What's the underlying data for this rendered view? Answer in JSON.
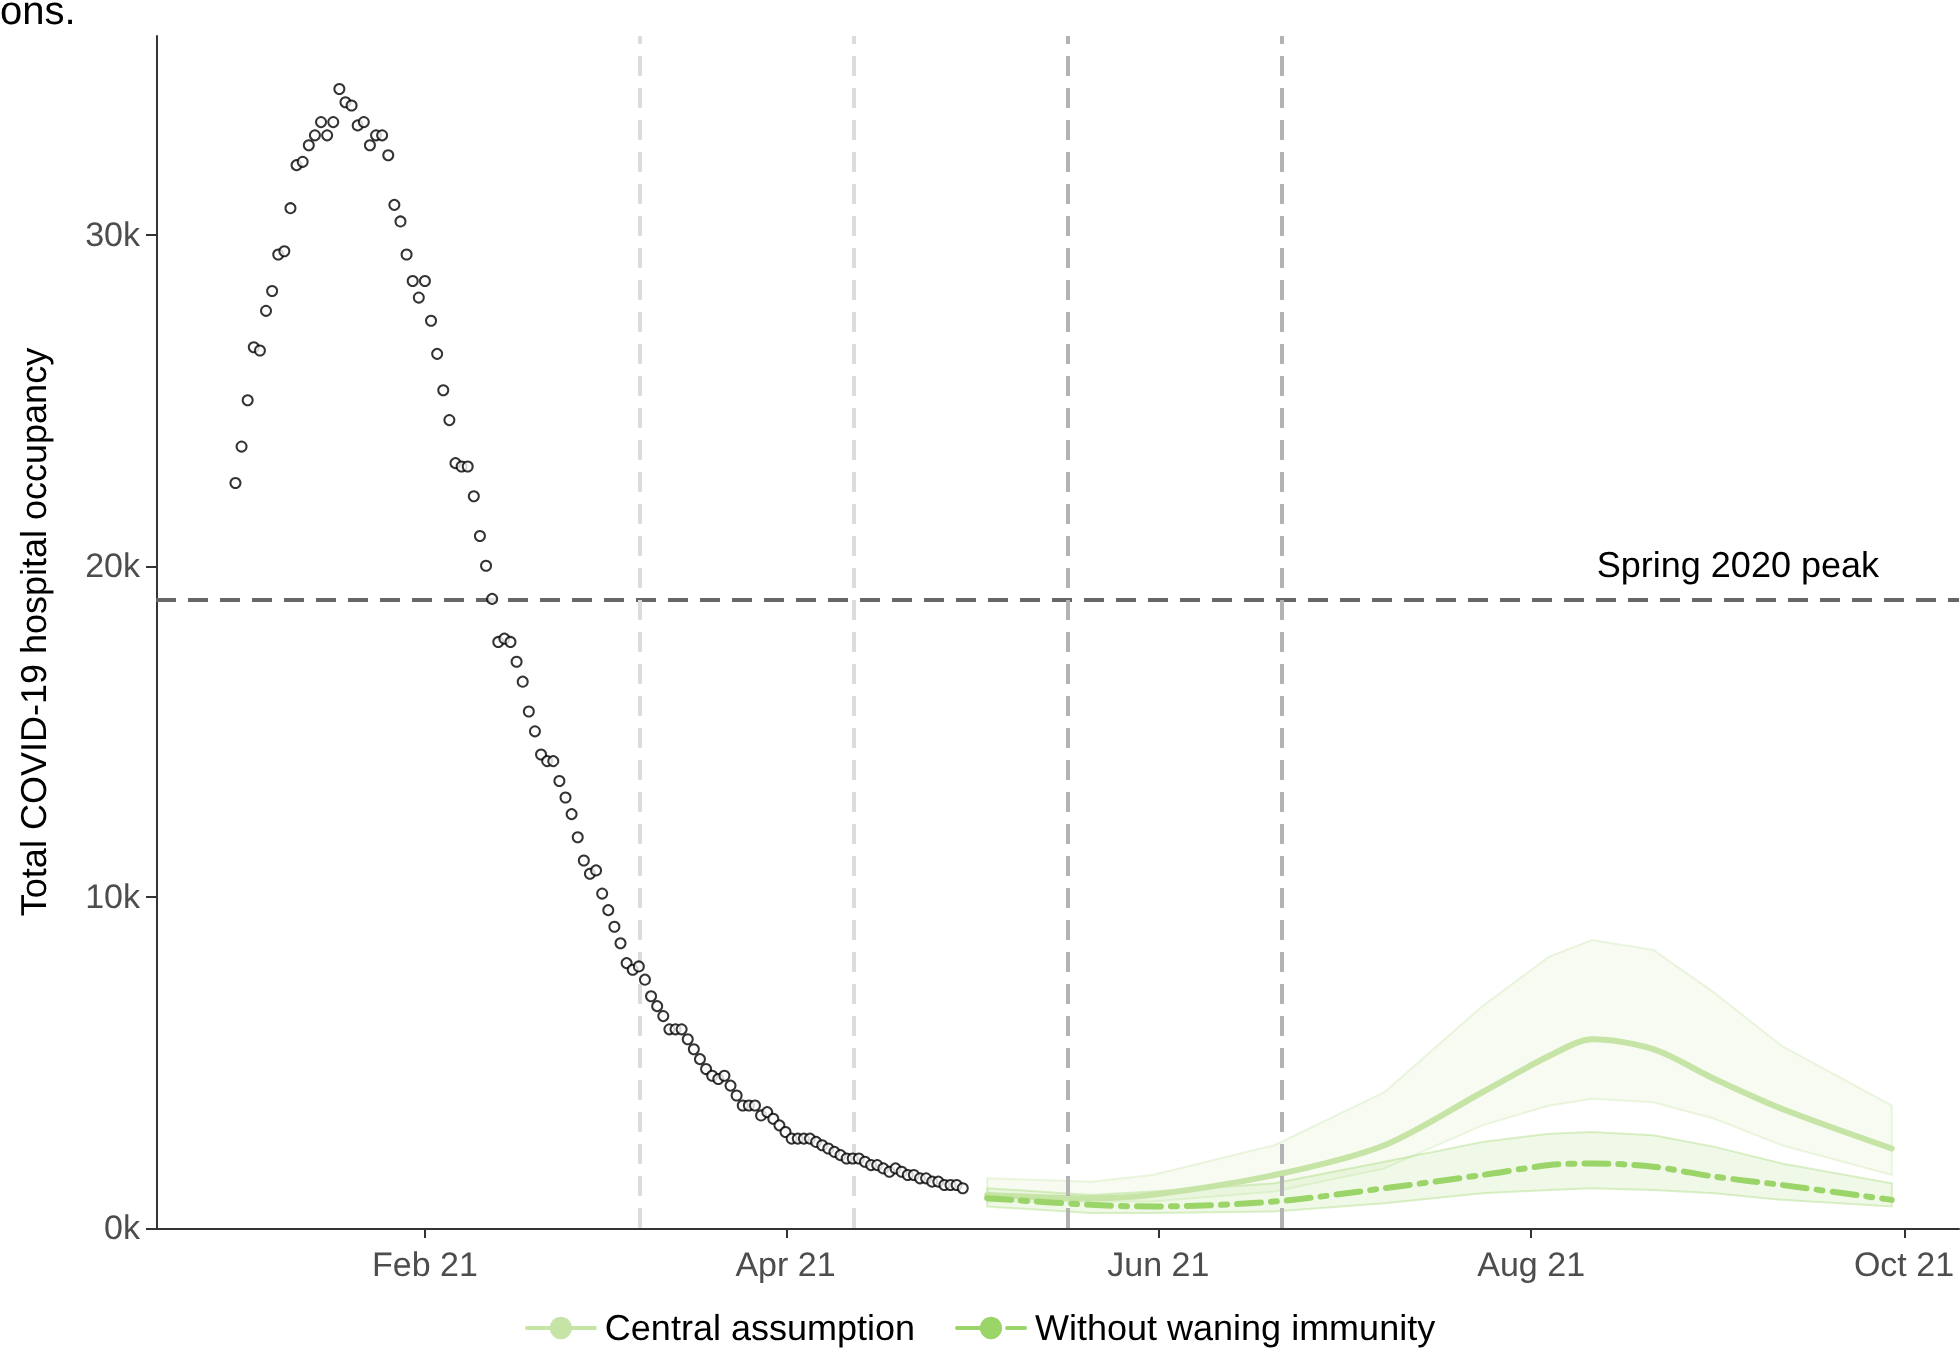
{
  "chart_data": {
    "type": "line",
    "ylabel": "Total COVID-19 hospital occupancy",
    "annotations": [
      "ons."
    ],
    "xlim": [
      "2020-12-19",
      "2021-10-10"
    ],
    "xticks": [
      {
        "value": "2021-02-01",
        "label": "Feb 21"
      },
      {
        "value": "2021-04-01",
        "label": "Apr 21"
      },
      {
        "value": "2021-06-01",
        "label": "Jun 21"
      },
      {
        "value": "2021-08-01",
        "label": "Aug 21"
      },
      {
        "value": "2021-10-01",
        "label": "Oct 21"
      }
    ],
    "ylim": [
      0,
      36000
    ],
    "yticks": [
      {
        "value": 0,
        "label": "0k"
      },
      {
        "value": 10000,
        "label": "10k"
      },
      {
        "value": 20000,
        "label": "20k"
      },
      {
        "value": 30000,
        "label": "30k"
      }
    ],
    "legend": "bottom",
    "ref_lines": [
      {
        "axis": "y",
        "value": 19000,
        "label": "Spring 2020 peak",
        "color": "#666666",
        "line_style": "dashed"
      },
      {
        "axis": "x",
        "value": "2021-03-08",
        "label": null,
        "color": "#dcdcdc",
        "line_style": "dashed"
      },
      {
        "axis": "x",
        "value": "2021-04-12",
        "label": null,
        "color": "#dcdcdc",
        "line_style": "dashed"
      },
      {
        "axis": "x",
        "value": "2021-05-17",
        "label": null,
        "color": "#b3b3b3",
        "line_style": "dashed"
      },
      {
        "axis": "x",
        "value": "2021-06-21",
        "label": null,
        "color": "#b3b3b3",
        "line_style": "dashed"
      }
    ],
    "series": [
      {
        "type": "scatter",
        "marker": "circle",
        "color": "#000000",
        "x": [
          "2021-01-01",
          "2021-01-02",
          "2021-01-03",
          "2021-01-04",
          "2021-01-05",
          "2021-01-06",
          "2021-01-07",
          "2021-01-08",
          "2021-01-09",
          "2021-01-10",
          "2021-01-11",
          "2021-01-12",
          "2021-01-13",
          "2021-01-14",
          "2021-01-15",
          "2021-01-16",
          "2021-01-17",
          "2021-01-18",
          "2021-01-19",
          "2021-01-20",
          "2021-01-21",
          "2021-01-22",
          "2021-01-23",
          "2021-01-24",
          "2021-01-25",
          "2021-01-26",
          "2021-01-27",
          "2021-01-28",
          "2021-01-29",
          "2021-01-30",
          "2021-01-31",
          "2021-02-01",
          "2021-02-02",
          "2021-02-03",
          "2021-02-04",
          "2021-02-05",
          "2021-02-06",
          "2021-02-07",
          "2021-02-08",
          "2021-02-09",
          "2021-02-10",
          "2021-02-11",
          "2021-02-12",
          "2021-02-13",
          "2021-02-14",
          "2021-02-15",
          "2021-02-16",
          "2021-02-17",
          "2021-02-18",
          "2021-02-19",
          "2021-02-20",
          "2021-02-21",
          "2021-02-22",
          "2021-02-23",
          "2021-02-24",
          "2021-02-25",
          "2021-02-26",
          "2021-02-27",
          "2021-02-28",
          "2021-03-01",
          "2021-03-02",
          "2021-03-03",
          "2021-03-04",
          "2021-03-05",
          "2021-03-06",
          "2021-03-07",
          "2021-03-08",
          "2021-03-09",
          "2021-03-10",
          "2021-03-11",
          "2021-03-12",
          "2021-03-13",
          "2021-03-14",
          "2021-03-15",
          "2021-03-16",
          "2021-03-17",
          "2021-03-18",
          "2021-03-19",
          "2021-03-20",
          "2021-03-21",
          "2021-03-22",
          "2021-03-23",
          "2021-03-24",
          "2021-03-25",
          "2021-03-26",
          "2021-03-27",
          "2021-03-28",
          "2021-03-29",
          "2021-03-30",
          "2021-03-31",
          "2021-04-01",
          "2021-04-02",
          "2021-04-03",
          "2021-04-04",
          "2021-04-05",
          "2021-04-06",
          "2021-04-07",
          "2021-04-08",
          "2021-04-09",
          "2021-04-10",
          "2021-04-11",
          "2021-04-12",
          "2021-04-13",
          "2021-04-14",
          "2021-04-15",
          "2021-04-16",
          "2021-04-17",
          "2021-04-18",
          "2021-04-19",
          "2021-04-20",
          "2021-04-21",
          "2021-04-22",
          "2021-04-23",
          "2021-04-24",
          "2021-04-25",
          "2021-04-26",
          "2021-04-27",
          "2021-04-28",
          "2021-04-29",
          "2021-04-30"
        ],
        "values": [
          22500,
          23600,
          25000,
          26600,
          26500,
          27700,
          28300,
          29400,
          29500,
          30800,
          32100,
          32200,
          32700,
          33000,
          33400,
          33000,
          33400,
          34400,
          34000,
          33900,
          33300,
          33400,
          32700,
          33000,
          33000,
          32400,
          30900,
          30400,
          29400,
          28600,
          28100,
          28600,
          27400,
          26400,
          25300,
          24400,
          23100,
          23000,
          23000,
          22100,
          20900,
          20000,
          19000,
          17700,
          17800,
          17700,
          17100,
          16500,
          15600,
          15000,
          14300,
          14100,
          14100,
          13500,
          13000,
          12500,
          11800,
          11100,
          10700,
          10800,
          10100,
          9600,
          9100,
          8600,
          8000,
          7800,
          7900,
          7500,
          7000,
          6700,
          6400,
          6000,
          6000,
          6000,
          5700,
          5400,
          5100,
          4800,
          4600,
          4500,
          4600,
          4300,
          4000,
          3700,
          3700,
          3700,
          3400,
          3500,
          3300,
          3100,
          2900,
          2700,
          2700,
          2700,
          2700,
          2600,
          2500,
          2400,
          2300,
          2200,
          2100,
          2100,
          2100,
          2000,
          1900,
          1900,
          1800,
          1700,
          1800,
          1700,
          1600,
          1600,
          1500,
          1500,
          1400,
          1400,
          1300,
          1300,
          1300,
          1200
        ]
      },
      {
        "name": "Central assumption",
        "line_style": "solid",
        "color": "#c6e4a6",
        "x": [
          "2021-05-04",
          "2021-05-21",
          "2021-05-31",
          "2021-06-20",
          "2021-07-08",
          "2021-07-24",
          "2021-08-04",
          "2021-08-11",
          "2021-08-21",
          "2021-08-31",
          "2021-09-11",
          "2021-09-29"
        ],
        "values": [
          1000,
          900,
          1000,
          1600,
          2500,
          4100,
          5200,
          5700,
          5400,
          4500,
          3600,
          2400
        ],
        "lower": [
          800,
          800,
          800,
          1100,
          1800,
          3100,
          3700,
          3900,
          3800,
          3300,
          2500,
          1600
        ],
        "upper": [
          1500,
          1400,
          1600,
          2500,
          4100,
          6700,
          8200,
          8700,
          8400,
          7100,
          5500,
          3700
        ]
      },
      {
        "name": "Without waning immunity",
        "line_style": "dashed",
        "color": "#9bd468",
        "x": [
          "2021-05-04",
          "2021-05-21",
          "2021-05-31",
          "2021-06-20",
          "2021-07-08",
          "2021-07-24",
          "2021-08-04",
          "2021-08-11",
          "2021-08-21",
          "2021-08-31",
          "2021-09-11",
          "2021-09-29"
        ],
        "values": [
          900,
          700,
          650,
          800,
          1200,
          1600,
          1900,
          1950,
          1850,
          1550,
          1300,
          850
        ],
        "lower": [
          650,
          450,
          450,
          500,
          750,
          1050,
          1150,
          1200,
          1150,
          1050,
          850,
          650
        ],
        "upper": [
          1200,
          1000,
          1100,
          1350,
          2000,
          2600,
          2850,
          2900,
          2800,
          2450,
          1950,
          1350
        ]
      }
    ]
  }
}
